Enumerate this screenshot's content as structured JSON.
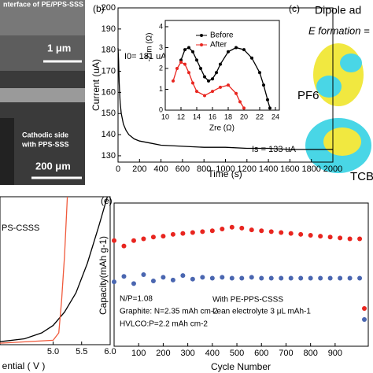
{
  "chart_data": [
    {
      "type": "line",
      "panel_label": "(b)",
      "x_label": "Time (s)",
      "y_label": "Current (uA)",
      "xlim": [
        0,
        2000
      ],
      "ylim": [
        127,
        200
      ],
      "xticks": [
        0,
        200,
        400,
        600,
        800,
        1000,
        1200,
        1400,
        1600,
        1800,
        2000
      ],
      "yticks": [
        130,
        140,
        150,
        160,
        170,
        180,
        190,
        200
      ],
      "annotations": [
        "I0= 181 uA",
        "Is = 133 uA"
      ],
      "series": [
        {
          "color": "#000000",
          "x": [
            0,
            5,
            10,
            20,
            30,
            50,
            75,
            100,
            150,
            200,
            300,
            400,
            600,
            800,
            1000,
            1200,
            1400,
            1600,
            1800,
            2000
          ],
          "values": [
            181,
            175,
            165,
            155,
            150,
            145,
            142,
            140,
            138,
            137,
            136,
            135,
            134.5,
            134,
            134,
            133.5,
            133.5,
            133,
            133,
            133
          ]
        }
      ]
    },
    {
      "type": "line",
      "markers": true,
      "x_label": "Zre (Ω)",
      "y_label": "-Zim (Ω)",
      "xlim": [
        10,
        24.5
      ],
      "ylim": [
        0,
        4.3
      ],
      "xticks": [
        10,
        12,
        14,
        16,
        18,
        20,
        22,
        24
      ],
      "yticks": [
        0,
        1,
        2,
        3,
        4
      ],
      "series": [
        {
          "name": "Before",
          "color": "#000000",
          "x": [
            12,
            12.5,
            13,
            13.5,
            14,
            14.5,
            15,
            15.5,
            16,
            16.5,
            17,
            18,
            19,
            20,
            21,
            22,
            22.5,
            23,
            23.3
          ],
          "values": [
            2.4,
            2.9,
            3.0,
            2.8,
            2.4,
            2.0,
            1.6,
            1.4,
            1.5,
            1.8,
            2.2,
            2.8,
            3.0,
            2.9,
            2.5,
            1.8,
            1.2,
            0.5,
            0.1
          ]
        },
        {
          "name": "After",
          "color": "#e8251f",
          "x": [
            11,
            11.5,
            12,
            12.5,
            13,
            13.5,
            14,
            15,
            16,
            17,
            18,
            19,
            19.5,
            20
          ],
          "values": [
            1.4,
            2.0,
            2.3,
            2.2,
            1.8,
            1.3,
            0.9,
            0.7,
            0.9,
            1.1,
            1.2,
            0.8,
            0.4,
            0.1
          ]
        }
      ]
    },
    {
      "type": "line",
      "x_label": "ential ( V )",
      "annotations": [
        "PS-CSSS"
      ],
      "xlim": [
        4.07,
        6.0
      ],
      "ylim": [
        0,
        1
      ],
      "xticks": [
        {
          "value": 5,
          "label": "5.0"
        },
        5.5,
        {
          "value": 6,
          "label": "6.0"
        }
      ],
      "series": [
        {
          "color": "#000000",
          "x": [
            4.07,
            4.5,
            4.8,
            5.0,
            5.2,
            5.4,
            5.6,
            5.8,
            5.95
          ],
          "values": [
            0.02,
            0.04,
            0.08,
            0.13,
            0.22,
            0.35,
            0.55,
            0.8,
            1.0
          ]
        },
        {
          "color": "#f05a3c",
          "x": [
            4.07,
            5.0,
            5.1,
            5.15,
            5.2,
            5.25
          ],
          "values": [
            0.01,
            0.03,
            0.08,
            0.3,
            0.6,
            1.0
          ]
        }
      ]
    },
    {
      "type": "scatter",
      "panel_label": "(e)",
      "x_label": "Cycle Number",
      "y_label": "Capacity(mAh g-1)",
      "xlim": [
        0,
        1035
      ],
      "ylim": [
        0,
        160
      ],
      "xticks": [
        100,
        200,
        300,
        400,
        500,
        600,
        700,
        800,
        900
      ],
      "annotations": [
        "N/P=1.08",
        "Graphite: N=2.35 mAh cm-2",
        "HVLCO:P=2.2 mAh cm-2",
        "With PE-PPS-CSSS",
        "Lean electrolyte 3 μL mAh-1"
      ],
      "series": [
        {
          "color": "#e8251f",
          "x": [
            0,
            40,
            80,
            120,
            160,
            200,
            240,
            280,
            320,
            360,
            400,
            440,
            480,
            520,
            560,
            600,
            640,
            680,
            720,
            760,
            800,
            840,
            880,
            920,
            960,
            1000
          ],
          "values": [
            118,
            112,
            118,
            120,
            122,
            123,
            125,
            126,
            127,
            128,
            129,
            131,
            133,
            132,
            130,
            129,
            128,
            127,
            126,
            125,
            124,
            123,
            122,
            121,
            120,
            120
          ]
        },
        {
          "color": "#4a66b0",
          "x": [
            0,
            40,
            80,
            120,
            160,
            200,
            240,
            280,
            320,
            360,
            400,
            440,
            480,
            520,
            560,
            600,
            640,
            680,
            720,
            760,
            800,
            840,
            880,
            920,
            960,
            1000
          ],
          "values": [
            72,
            78,
            70,
            80,
            73,
            77,
            74,
            79,
            75,
            77,
            76,
            77,
            76,
            76,
            77,
            76,
            76,
            76,
            76,
            76,
            76,
            76,
            76,
            76,
            76,
            76
          ]
        }
      ]
    }
  ],
  "panels": {
    "a": {
      "texts": [
        "nterface of PE/PPS-SSS",
        "1 μm",
        "Cathodic side",
        "with PPS-SSS",
        "200 μm"
      ]
    },
    "c": {
      "label": "(c)",
      "title": "Dipole ad",
      "formula": "E formation =",
      "texts": [
        "PF6",
        "TCB"
      ]
    }
  }
}
